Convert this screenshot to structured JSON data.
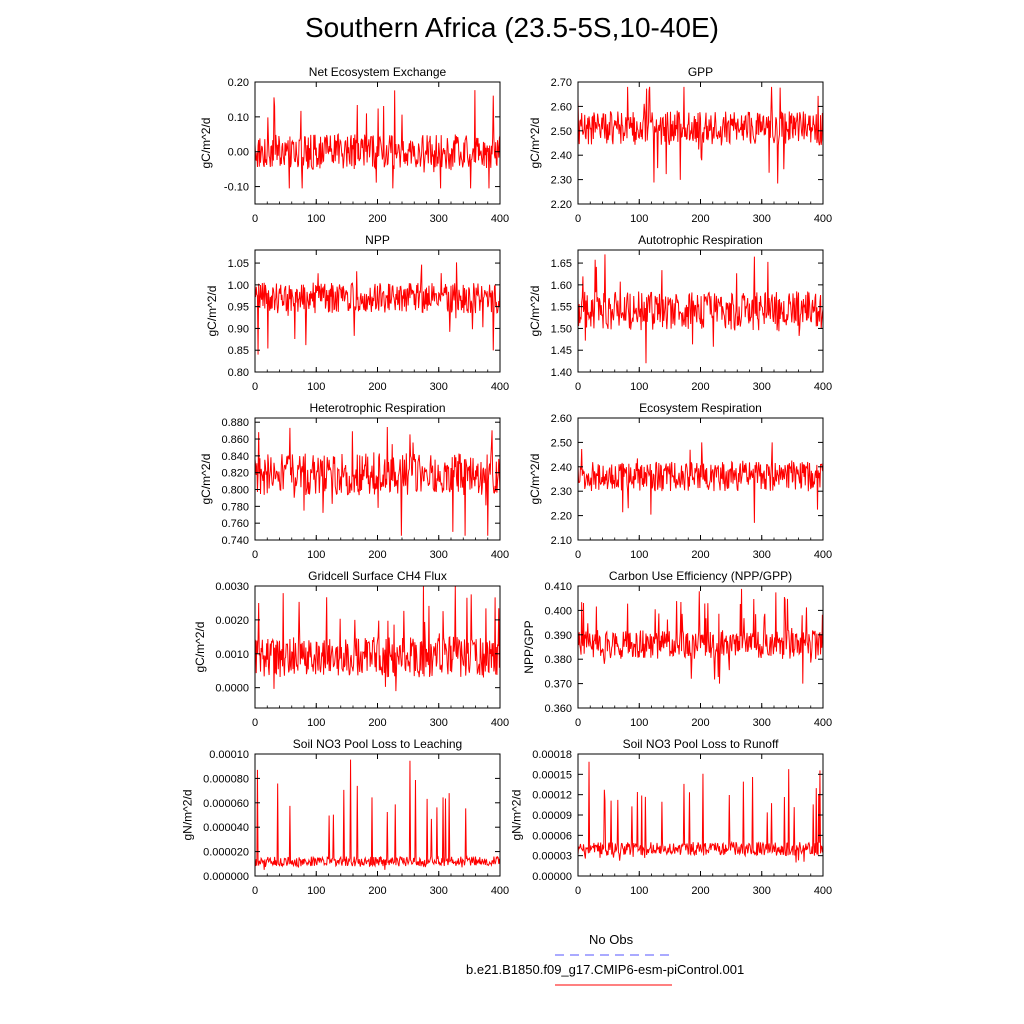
{
  "title": "Southern Africa (23.5-5S,10-40E)",
  "colors": {
    "model": "#ff0000",
    "obs": "#5555ff",
    "axis": "#000000"
  },
  "legend": [
    {
      "name": "No Obs",
      "color": "#5555ff",
      "style": "dashed"
    },
    {
      "name": "b.e21.B1850.f09_g17.CMIP6-esm-piControl.001",
      "color": "#ff0000",
      "style": "solid"
    }
  ],
  "chart_data": [
    {
      "type": "line",
      "title": "Net Ecosystem Exchange",
      "ylabel": "gC/m^2/d",
      "xlabel": "",
      "xlim": [
        0,
        400
      ],
      "xticks": [
        "0",
        "100",
        "200",
        "300",
        "400"
      ],
      "ylim": [
        -0.15,
        0.2
      ],
      "yticks": [
        "0.20",
        "0.10",
        "0.00",
        "-0.10"
      ],
      "ytick_values": [
        0.2,
        0.1,
        0.0,
        -0.1
      ],
      "series_summary": {
        "name": "b.e21.B1850.f09_g17.CMIP6-esm-piControl.001",
        "mean": 0.0,
        "amplitude": 0.05,
        "max": 0.19,
        "min": -0.105,
        "n": 400
      }
    },
    {
      "type": "line",
      "title": "GPP",
      "ylabel": "gC/m^2/d",
      "xlabel": "",
      "xlim": [
        0,
        400
      ],
      "xticks": [
        "0",
        "100",
        "200",
        "300",
        "400"
      ],
      "ylim": [
        2.2,
        2.7
      ],
      "yticks": [
        "2.70",
        "2.60",
        "2.50",
        "2.40",
        "2.30",
        "2.20"
      ],
      "ytick_values": [
        2.7,
        2.6,
        2.5,
        2.4,
        2.3,
        2.2
      ],
      "series_summary": {
        "name": "b.e21.B1850.f09_g17.CMIP6-esm-piControl.001",
        "mean": 2.51,
        "amplitude": 0.07,
        "max": 2.68,
        "min": 2.26,
        "n": 400
      }
    },
    {
      "type": "line",
      "title": "NPP",
      "ylabel": "gC/m^2/d",
      "xlabel": "",
      "xlim": [
        0,
        400
      ],
      "xticks": [
        "0",
        "100",
        "200",
        "300",
        "400"
      ],
      "ylim": [
        0.8,
        1.08
      ],
      "yticks": [
        "1.05",
        "1.00",
        "0.95",
        "0.90",
        "0.85",
        "0.80"
      ],
      "ytick_values": [
        1.05,
        1.0,
        0.95,
        0.9,
        0.85,
        0.8
      ],
      "series_summary": {
        "name": "b.e21.B1850.f09_g17.CMIP6-esm-piControl.001",
        "mean": 0.97,
        "amplitude": 0.035,
        "max": 1.055,
        "min": 0.84,
        "n": 400
      }
    },
    {
      "type": "line",
      "title": "Autotrophic Respiration",
      "ylabel": "gC/m^2/d",
      "xlabel": "",
      "xlim": [
        0,
        400
      ],
      "xticks": [
        "0",
        "100",
        "200",
        "300",
        "400"
      ],
      "ylim": [
        1.4,
        1.68
      ],
      "yticks": [
        "1.65",
        "1.60",
        "1.55",
        "1.50",
        "1.45",
        "1.40"
      ],
      "ytick_values": [
        1.65,
        1.6,
        1.55,
        1.5,
        1.45,
        1.4
      ],
      "series_summary": {
        "name": "b.e21.B1850.f09_g17.CMIP6-esm-piControl.001",
        "mean": 1.54,
        "amplitude": 0.045,
        "max": 1.67,
        "min": 1.4,
        "n": 400
      }
    },
    {
      "type": "line",
      "title": "Heterotrophic Respiration",
      "ylabel": "gC/m^2/d",
      "xlabel": "",
      "xlim": [
        0,
        400
      ],
      "xticks": [
        "0",
        "100",
        "200",
        "300",
        "400"
      ],
      "ylim": [
        0.74,
        0.885
      ],
      "yticks": [
        "0.880",
        "0.860",
        "0.840",
        "0.820",
        "0.800",
        "0.780",
        "0.760",
        "0.740"
      ],
      "ytick_values": [
        0.88,
        0.86,
        0.84,
        0.82,
        0.8,
        0.78,
        0.76,
        0.74
      ],
      "series_summary": {
        "name": "b.e21.B1850.f09_g17.CMIP6-esm-piControl.001",
        "mean": 0.818,
        "amplitude": 0.025,
        "max": 0.88,
        "min": 0.745,
        "n": 400
      }
    },
    {
      "type": "line",
      "title": "Ecosystem Respiration",
      "ylabel": "gC/m^2/d",
      "xlabel": "",
      "xlim": [
        0,
        400
      ],
      "xticks": [
        "0",
        "100",
        "200",
        "300",
        "400"
      ],
      "ylim": [
        2.1,
        2.6
      ],
      "yticks": [
        "2.60",
        "2.50",
        "2.40",
        "2.30",
        "2.20",
        "2.10"
      ],
      "ytick_values": [
        2.6,
        2.5,
        2.4,
        2.3,
        2.2,
        2.1
      ],
      "series_summary": {
        "name": "b.e21.B1850.f09_g17.CMIP6-esm-piControl.001",
        "mean": 2.36,
        "amplitude": 0.06,
        "max": 2.5,
        "min": 2.17,
        "n": 400
      }
    },
    {
      "type": "line",
      "title": "Gridcell Surface CH4 Flux",
      "ylabel": "gC/m^2/d",
      "xlabel": "",
      "xlim": [
        0,
        400
      ],
      "xticks": [
        "0",
        "100",
        "200",
        "300",
        "400"
      ],
      "ylim": [
        -0.0006,
        0.003
      ],
      "yticks": [
        "0.0030",
        "0.0020",
        "0.0010",
        "0.0000"
      ],
      "ytick_values": [
        0.003,
        0.002,
        0.001,
        0.0
      ],
      "series_summary": {
        "name": "b.e21.B1850.f09_g17.CMIP6-esm-piControl.001",
        "mean": 0.0009,
        "amplitude": 0.0006,
        "max": 0.003,
        "min": -0.0001,
        "n": 400
      }
    },
    {
      "type": "line",
      "title": "Carbon Use Efficiency (NPP/GPP)",
      "ylabel": "NPP/GPP",
      "xlabel": "",
      "xlim": [
        0,
        400
      ],
      "xticks": [
        "0",
        "100",
        "200",
        "300",
        "400"
      ],
      "ylim": [
        0.36,
        0.41
      ],
      "yticks": [
        "0.410",
        "0.400",
        "0.390",
        "0.380",
        "0.370",
        "0.360"
      ],
      "ytick_values": [
        0.41,
        0.4,
        0.39,
        0.38,
        0.37,
        0.36
      ],
      "series_summary": {
        "name": "b.e21.B1850.f09_g17.CMIP6-esm-piControl.001",
        "mean": 0.386,
        "amplitude": 0.006,
        "max": 0.409,
        "min": 0.37,
        "n": 400
      }
    },
    {
      "type": "line",
      "title": "Soil NO3 Pool Loss to Leaching",
      "ylabel": "gN/m^2/d",
      "xlabel": "",
      "xlim": [
        0,
        400
      ],
      "xticks": [
        "0",
        "100",
        "200",
        "300",
        "400"
      ],
      "ylim": [
        0,
        0.0001
      ],
      "yticks": [
        "0.00010",
        "0.000080",
        "0.000060",
        "0.000040",
        "0.000020",
        "0.000000"
      ],
      "ytick_values": [
        0.0001,
        8e-05,
        6e-05,
        4e-05,
        2e-05,
        0.0
      ],
      "series_summary": {
        "name": "b.e21.B1850.f09_g17.CMIP6-esm-piControl.001",
        "mean": 1.2e-05,
        "amplitude": 4e-06,
        "max": 9.7e-05,
        "min": 5e-06,
        "n": 400
      }
    },
    {
      "type": "line",
      "title": "Soil NO3 Pool Loss to Runoff",
      "ylabel": "gN/m^2/d",
      "xlabel": "",
      "xlim": [
        0,
        400
      ],
      "xticks": [
        "0",
        "100",
        "200",
        "300",
        "400"
      ],
      "ylim": [
        0,
        0.00018
      ],
      "yticks": [
        "0.00018",
        "0.00015",
        "0.00012",
        "0.00009",
        "0.00006",
        "0.00003",
        "0.00000"
      ],
      "ytick_values": [
        0.00018,
        0.00015,
        0.00012,
        9e-05,
        6e-05,
        3e-05,
        0.0
      ],
      "series_summary": {
        "name": "b.e21.B1850.f09_g17.CMIP6-esm-piControl.001",
        "mean": 4e-05,
        "amplitude": 1e-05,
        "max": 0.00017,
        "min": 2e-05,
        "n": 400
      }
    }
  ]
}
